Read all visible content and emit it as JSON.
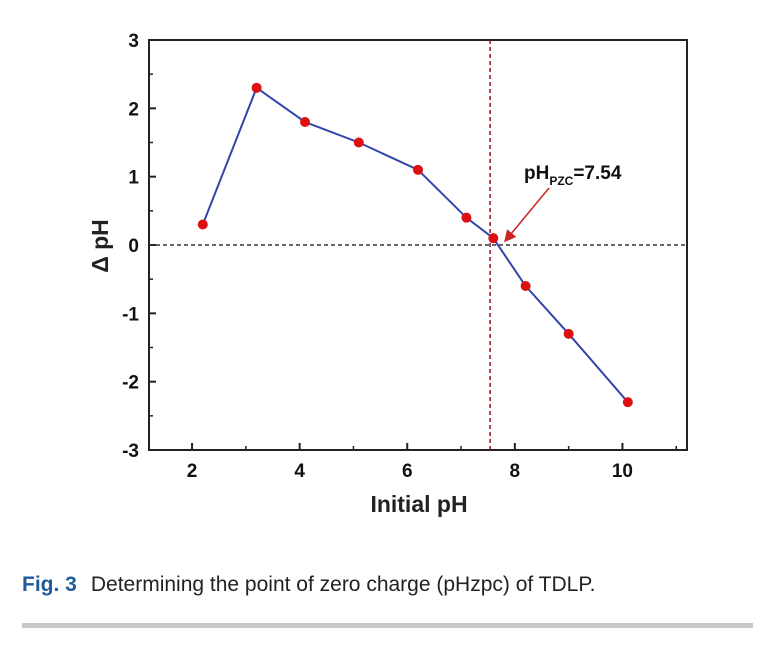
{
  "chart_data": {
    "type": "line",
    "xlabel": "Initial pH",
    "ylabel": "Δ pH",
    "xlim": [
      1.2,
      11.2
    ],
    "ylim": [
      -3,
      3
    ],
    "x_ticks": [
      "2",
      "4",
      "6",
      "8",
      "10"
    ],
    "y_ticks": [
      "3",
      "2",
      "1",
      "0",
      "-1",
      "-2",
      "-3"
    ],
    "series": [
      {
        "x": [
          2.2,
          3.2,
          4.1,
          5.1,
          6.2,
          7.1,
          7.6,
          8.2,
          9.0,
          10.1
        ],
        "y": [
          0.3,
          2.3,
          1.8,
          1.5,
          1.1,
          0.4,
          0.1,
          -0.6,
          -1.3,
          -2.3
        ]
      }
    ],
    "reference_lines": {
      "horizontal_y": 0,
      "vertical_x": 7.54
    },
    "annotation": {
      "main": "pH",
      "subscript": "PZC",
      "suffix": "=7.54"
    },
    "grid": false,
    "colors": {
      "line": "#3344aa",
      "marker": "#dd1111",
      "vline": "#8b1a1a",
      "hline": "#333333",
      "arrow": "#cc2222"
    }
  },
  "caption": {
    "label": "Fig. 3",
    "text": "Determining the point of zero charge (pHzpc) of TDLP."
  }
}
